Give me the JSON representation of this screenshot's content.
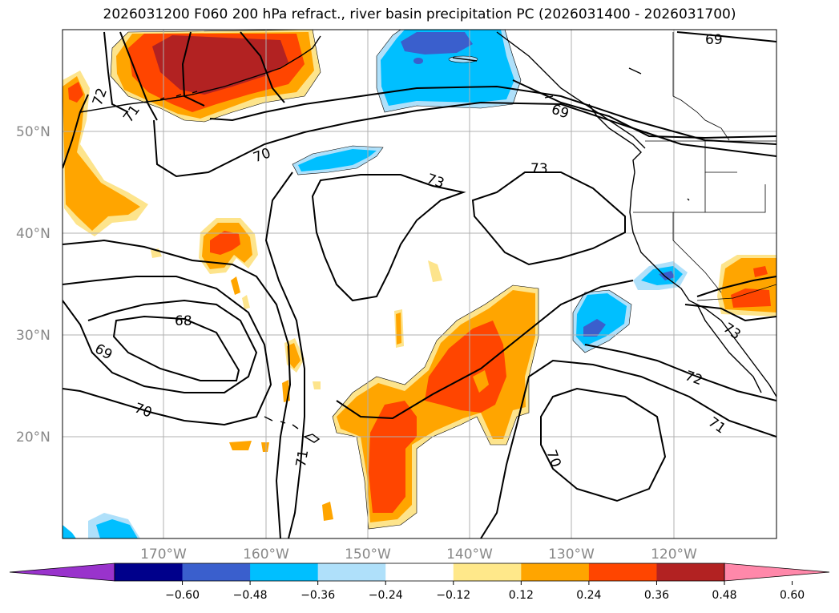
{
  "title": "2026031200 F060 200 hPa refract., river basin precipitation PC (2026031400 - 2026031700)",
  "lat_labels": [
    "50°N",
    "40°N",
    "30°N",
    "20°N"
  ],
  "lon_labels": [
    "170°W",
    "160°W",
    "150°W",
    "140°W",
    "130°W",
    "120°W"
  ],
  "colorbar": {
    "tick_labels": [
      "−0.60",
      "−0.48",
      "−0.36",
      "−0.24",
      "−0.12",
      "0.12",
      "0.24",
      "0.36",
      "0.48",
      "0.60"
    ],
    "colors": [
      "#9933cc",
      "#00008b",
      "#3a5fcd",
      "#00bfff",
      "#afe0fa",
      "#ffffff",
      "#ffe88a",
      "#ffa500",
      "#ff4500",
      "#b22222",
      "#ff88aa"
    ]
  },
  "contour_labels": [
    "69",
    "72",
    "71",
    "69",
    "70",
    "73",
    "73",
    "68",
    "69",
    "70",
    "71",
    "70",
    "72",
    "71",
    "73"
  ],
  "fill_colors": {
    "tan": "#fde48c",
    "orange": "#ffa500",
    "red": "#ff4500",
    "darkred": "#b22222",
    "lightblue": "#afe0fa",
    "cyan": "#00bfff",
    "blue": "#3a5fcd"
  }
}
